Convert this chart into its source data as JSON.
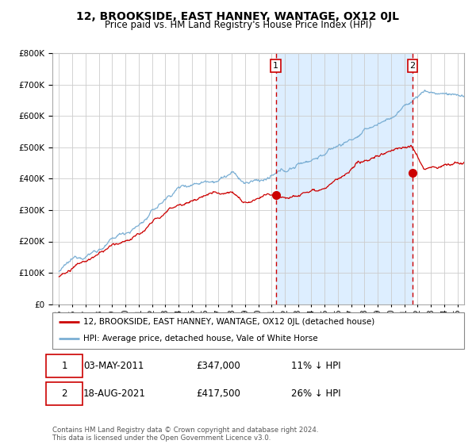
{
  "title": "12, BROOKSIDE, EAST HANNEY, WANTAGE, OX12 0JL",
  "subtitle": "Price paid vs. HM Land Registry's House Price Index (HPI)",
  "ylim": [
    0,
    800000
  ],
  "xlim_start": 1994.5,
  "xlim_end": 2025.5,
  "sale1_year": 2011.33,
  "sale1_price": 347000,
  "sale1_date": "03-MAY-2011",
  "sale1_hpi_pct": "11% ↓ HPI",
  "sale2_year": 2021.62,
  "sale2_price": 417500,
  "sale2_date": "18-AUG-2021",
  "sale2_hpi_pct": "26% ↓ HPI",
  "line_color_property": "#cc0000",
  "line_color_hpi": "#7bafd4",
  "shade_color": "#ddeeff",
  "dashed_line_color": "#cc0000",
  "marker_color": "#cc0000",
  "legend_label_property": "12, BROOKSIDE, EAST HANNEY, WANTAGE, OX12 0JL (detached house)",
  "legend_label_hpi": "HPI: Average price, detached house, Vale of White Horse",
  "footer": "Contains HM Land Registry data © Crown copyright and database right 2024.\nThis data is licensed under the Open Government Licence v3.0.",
  "background_color": "#ffffff",
  "plot_bg_color": "#ffffff",
  "grid_color": "#cccccc",
  "title_fontsize": 10,
  "subtitle_fontsize": 8.5,
  "tick_fontsize": 7.5
}
